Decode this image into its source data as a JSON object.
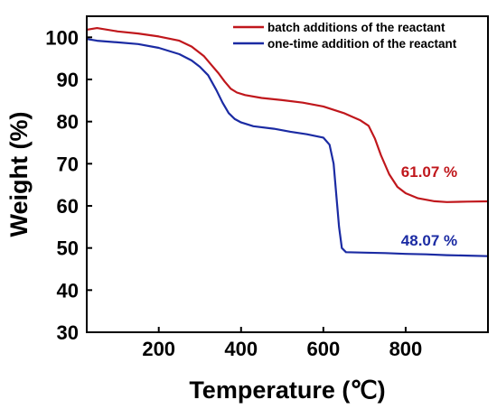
{
  "chart_data": {
    "type": "line",
    "xlabel": "Temperature (℃)",
    "ylabel": "Weight (%)",
    "xlim": [
      25,
      1000
    ],
    "ylim": [
      30,
      105
    ],
    "xticks": [
      200,
      400,
      600,
      800
    ],
    "yticks": [
      30,
      40,
      50,
      60,
      70,
      80,
      90,
      100
    ],
    "grid": false,
    "legend_position": "top-right",
    "series": [
      {
        "name": "batch additions of the reactant",
        "color": "#c0171c",
        "end_label": "61.07 %",
        "points": [
          [
            25,
            101.8
          ],
          [
            50,
            102.2
          ],
          [
            100,
            101.4
          ],
          [
            150,
            100.9
          ],
          [
            200,
            100.2
          ],
          [
            250,
            99.2
          ],
          [
            280,
            97.8
          ],
          [
            310,
            95.5
          ],
          [
            330,
            93.2
          ],
          [
            345,
            91.5
          ],
          [
            360,
            89.5
          ],
          [
            375,
            87.8
          ],
          [
            390,
            86.9
          ],
          [
            410,
            86.3
          ],
          [
            450,
            85.6
          ],
          [
            500,
            85.1
          ],
          [
            550,
            84.5
          ],
          [
            600,
            83.6
          ],
          [
            650,
            82.0
          ],
          [
            690,
            80.3
          ],
          [
            710,
            79.0
          ],
          [
            725,
            76.0
          ],
          [
            740,
            72.0
          ],
          [
            760,
            67.5
          ],
          [
            780,
            64.5
          ],
          [
            800,
            63.0
          ],
          [
            830,
            61.8
          ],
          [
            870,
            61.1
          ],
          [
            900,
            60.9
          ],
          [
            950,
            61.0
          ],
          [
            1000,
            61.07
          ]
        ]
      },
      {
        "name": "one-time addition of the reactant",
        "color": "#1b2ba3",
        "end_label": "48.07 %",
        "points": [
          [
            25,
            99.6
          ],
          [
            50,
            99.2
          ],
          [
            100,
            98.8
          ],
          [
            150,
            98.4
          ],
          [
            200,
            97.5
          ],
          [
            250,
            96.0
          ],
          [
            280,
            94.5
          ],
          [
            300,
            93.0
          ],
          [
            320,
            91.0
          ],
          [
            340,
            87.5
          ],
          [
            355,
            84.5
          ],
          [
            370,
            82.0
          ],
          [
            385,
            80.6
          ],
          [
            400,
            79.8
          ],
          [
            430,
            78.9
          ],
          [
            480,
            78.3
          ],
          [
            520,
            77.6
          ],
          [
            560,
            77.0
          ],
          [
            600,
            76.2
          ],
          [
            615,
            74.5
          ],
          [
            625,
            70.0
          ],
          [
            632,
            62.0
          ],
          [
            638,
            55.0
          ],
          [
            645,
            50.0
          ],
          [
            655,
            49.0
          ],
          [
            700,
            48.9
          ],
          [
            750,
            48.8
          ],
          [
            800,
            48.6
          ],
          [
            850,
            48.5
          ],
          [
            900,
            48.3
          ],
          [
            950,
            48.2
          ],
          [
            1000,
            48.07
          ]
        ]
      }
    ]
  }
}
